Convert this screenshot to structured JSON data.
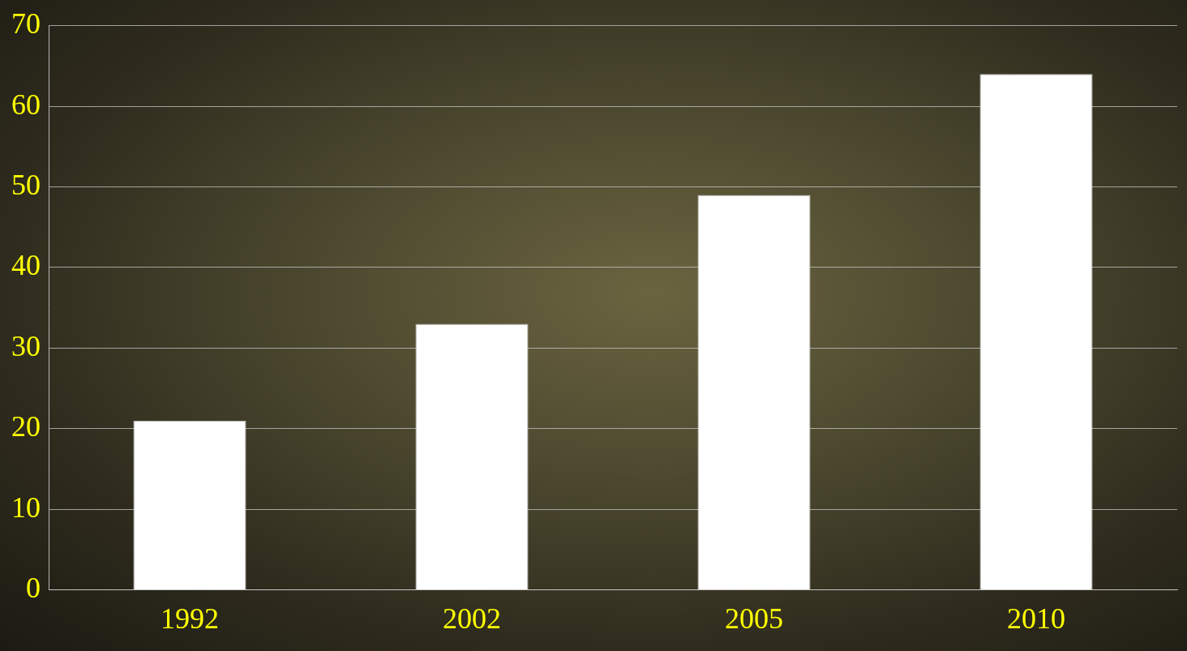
{
  "chart_data": {
    "type": "bar",
    "categories": [
      "1992",
      "2002",
      "2005",
      "2010"
    ],
    "values": [
      21,
      33,
      49,
      64
    ],
    "color": "#ffffff",
    "ylim": [
      0,
      70
    ],
    "yticks": [
      0,
      10,
      20,
      30,
      40,
      50,
      60,
      70
    ],
    "grid": true
  }
}
